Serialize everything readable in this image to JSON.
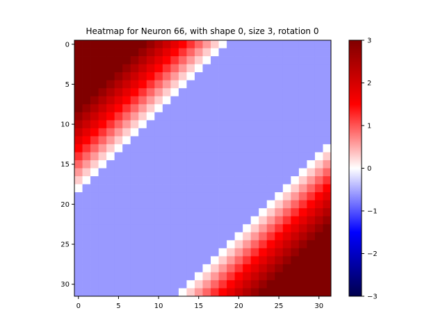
{
  "chart_data": {
    "type": "heatmap",
    "title": "Heatmap for Neuron 66, with shape 0, size 3, rotation 0",
    "xlabel": "",
    "ylabel": "",
    "grid": false,
    "rows": 32,
    "cols": 32,
    "x_ticks": [
      0,
      5,
      10,
      15,
      20,
      25,
      30
    ],
    "y_ticks": [
      0,
      5,
      10,
      15,
      20,
      25,
      30
    ],
    "colorbar": {
      "colormap": "seismic",
      "min": -3,
      "max": 3,
      "ticks": [
        3,
        2,
        1,
        0,
        -1,
        -2,
        -3
      ],
      "tick_labels": [
        "3",
        "2",
        "1",
        "0",
        "−1",
        "−2",
        "−3"
      ]
    },
    "pattern": {
      "description": "diagonal bands: positive in top-left and bottom-right corners, baseline elsewhere",
      "baseline": -0.6,
      "peak": 3.0,
      "upper_boundary_row_plus_col": 18,
      "lower_boundary_row_plus_col": 44,
      "ramp_per_step": 0.3
    }
  }
}
